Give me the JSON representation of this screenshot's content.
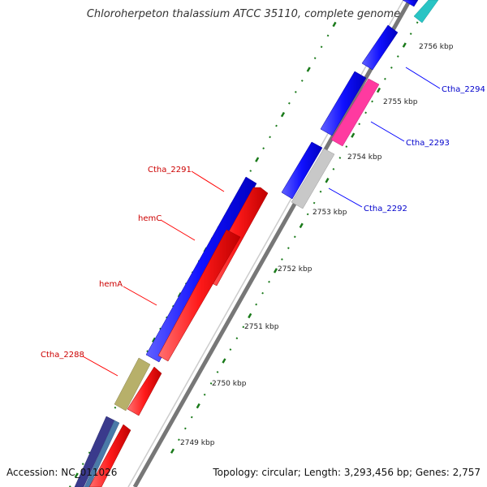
{
  "title": "Chloroherpeton thalassium ATCC 35110, complete genome",
  "footer": {
    "accession": "Accession: NC_011026",
    "summary": "Topology: circular; Length: 3,293,456 bp; Genes: 2,757"
  },
  "colors": {
    "forward_strand_gene": "#1010ff",
    "reverse_strand_gene": "#ff1a1a",
    "label_reverse": "#cc0000",
    "label_forward": "#0000cc",
    "tick": "#1a7a1a",
    "backbone": "#888888"
  },
  "ticks": [
    {
      "label": "2749 kbp"
    },
    {
      "label": "2750 kbp"
    },
    {
      "label": "2751 kbp"
    },
    {
      "label": "2752 kbp"
    },
    {
      "label": "2753 kbp"
    },
    {
      "label": "2754 kbp"
    },
    {
      "label": "2755 kbp"
    },
    {
      "label": "2756 kbp"
    }
  ],
  "gene_labels": {
    "left": [
      "Ctha_2291",
      "hemC",
      "hemA",
      "Ctha_2288"
    ],
    "right": [
      "Ctha_2294",
      "Ctha_2293",
      "Ctha_2292"
    ]
  }
}
